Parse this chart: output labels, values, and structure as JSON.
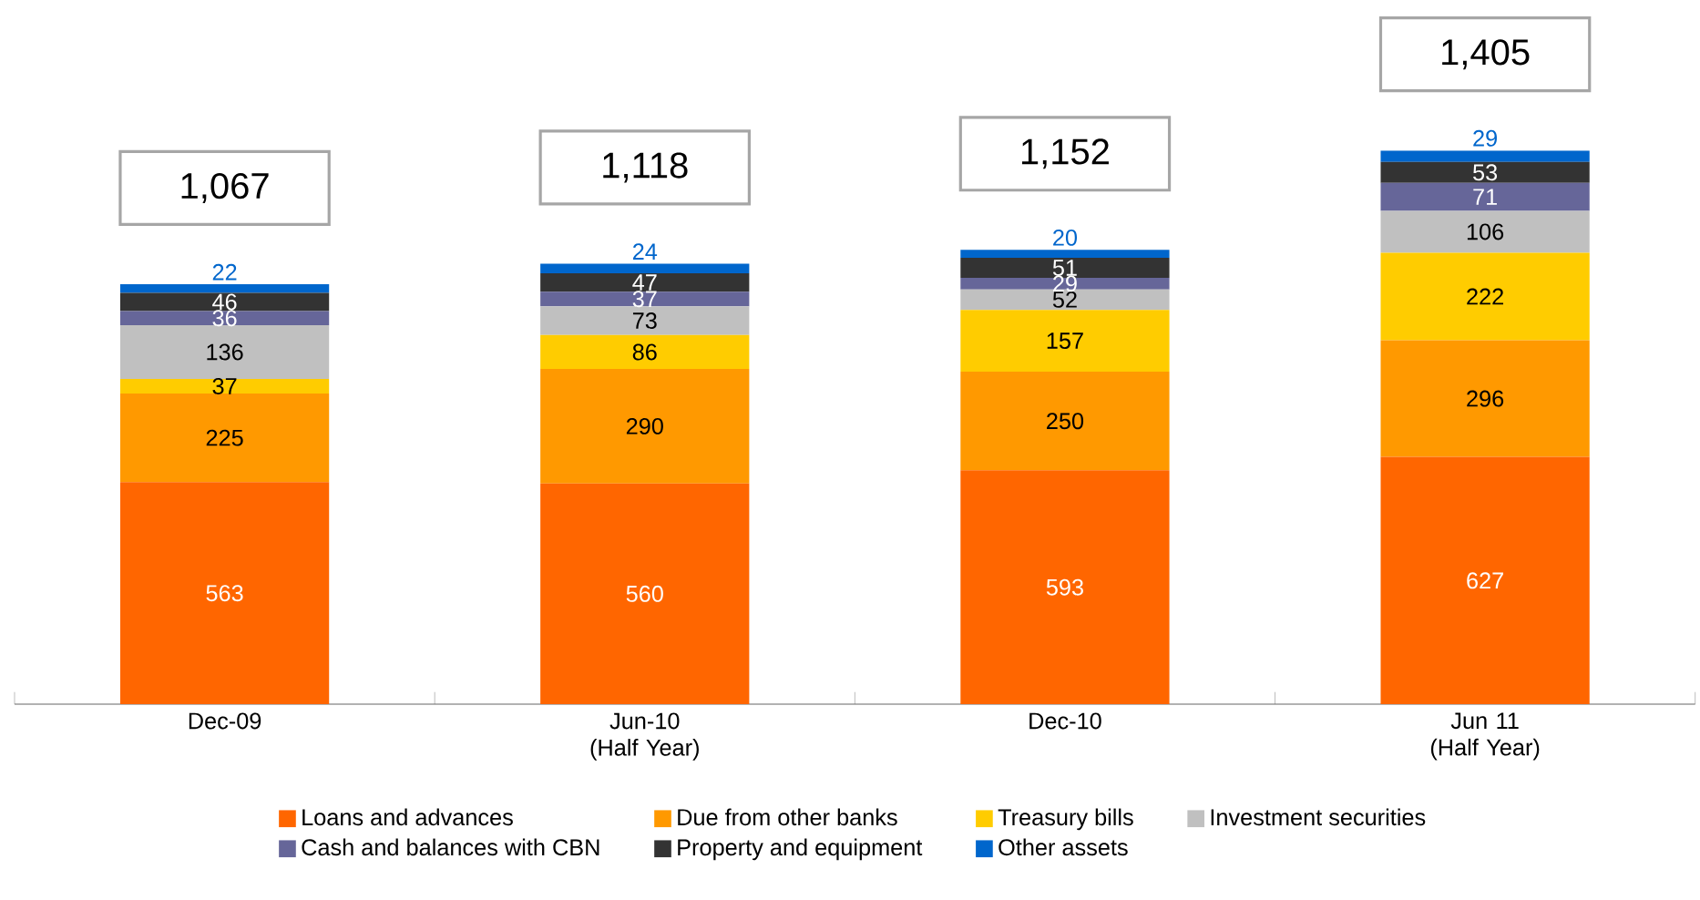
{
  "chart_data": {
    "type": "bar",
    "stacked": true,
    "data_labels": true,
    "legend": "bottom",
    "grid": false,
    "categories": [
      "Dec-09",
      "Jun-10 (Half Year)",
      "Dec-10",
      "Jun 11 (Half Year)"
    ],
    "tick_labels": "x",
    "series": [
      {
        "name": "Loans and advances",
        "color": "#ff6600",
        "values": [
          563,
          560,
          593,
          627
        ]
      },
      {
        "name": "Due from other banks",
        "color": "#ff9900",
        "values": [
          225,
          290,
          250,
          296
        ]
      },
      {
        "name": "Treasury bills",
        "color": "#ffcc00",
        "values": [
          37,
          86,
          157,
          222
        ]
      },
      {
        "name": "Investment securities",
        "color": "#c0c0c0",
        "values": [
          136,
          73,
          52,
          106
        ]
      },
      {
        "name": "Cash and balances with CBN",
        "color": "#666699",
        "values": [
          36,
          37,
          29,
          71
        ]
      },
      {
        "name": "Property and equipment",
        "color": "#333333",
        "values": [
          46,
          47,
          51,
          53
        ]
      },
      {
        "name": "Other assets",
        "color": "#0066cc",
        "values": [
          22,
          24,
          20,
          29
        ]
      }
    ],
    "totals": [
      "1,067",
      "1,118",
      "1,152",
      "1,405"
    ]
  }
}
